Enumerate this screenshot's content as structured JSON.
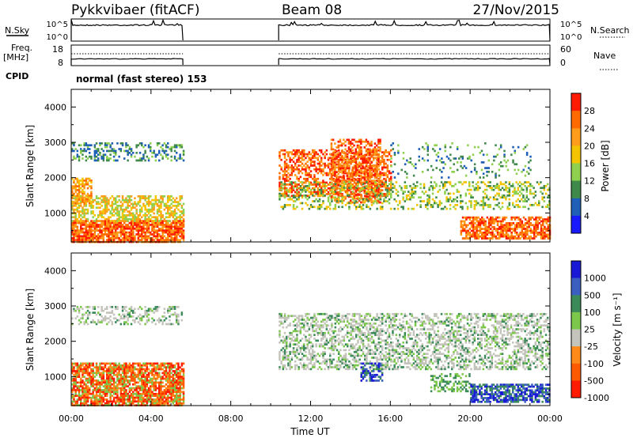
{
  "header": {
    "station": "Pykkvibaer (fitACF)",
    "beam": "Beam 08",
    "date": "27/Nov/2015"
  },
  "top_panels": {
    "nsky_label": "N.Sky",
    "nsky_ticks": [
      "10^5",
      "10^0"
    ],
    "nsearch_label": "N.Search",
    "nsearch_ticks": [
      "10^5",
      "10^0"
    ],
    "freq_label_1": "Freq.",
    "freq_label_2": "[MHz]",
    "freq_ticks": [
      "18",
      "8"
    ],
    "nave_label": "Nave",
    "nave_ticks": [
      "60",
      "0"
    ],
    "cpid_label": "CPID",
    "cpid_text": "normal (fast stereo) 153"
  },
  "axes": {
    "ylabel": "Slant Range [km]",
    "yticks": [
      "4000",
      "3000",
      "2000",
      "1000"
    ],
    "xticks": [
      "00:00",
      "04:00",
      "08:00",
      "12:00",
      "16:00",
      "20:00",
      "00:00"
    ],
    "xlabel": "Time UT"
  },
  "power_colorbar": {
    "label": "Power [dB]",
    "ticks": [
      "28",
      "24",
      "20",
      "16",
      "12",
      "8",
      "4"
    ],
    "colors": [
      "#ff1a00",
      "#ff6a00",
      "#ff9c1a",
      "#f5c400",
      "#8fd14f",
      "#3f8a4b",
      "#1f5fb8",
      "#1a1aff"
    ]
  },
  "velocity_colorbar": {
    "label": "Velocity [m s⁻¹]",
    "ticks": [
      "1000",
      "500",
      "100",
      "25",
      "-25",
      "-100",
      "-500",
      "-1000"
    ],
    "colors": [
      "#1a1ad6",
      "#3b5fc0",
      "#3a8a5a",
      "#7cc84a",
      "#c4c4bc",
      "#ff8a1a",
      "#ff5a00",
      "#ff1a00"
    ]
  },
  "chart_data": [
    {
      "type": "heatmap",
      "ylim": [
        180,
        4500
      ],
      "xlim": [
        0,
        24
      ],
      "colorbar_range": [
        0,
        32
      ],
      "observation_periods_hours": [
        [
          0,
          5.6
        ],
        [
          10.4,
          24
        ]
      ]
    },
    {
      "type": "heatmap",
      "ylim": [
        180,
        4500
      ],
      "xlim": [
        0,
        24
      ],
      "observation_periods_hours": [
        [
          0,
          5.6
        ],
        [
          10.4,
          24
        ]
      ]
    }
  ]
}
